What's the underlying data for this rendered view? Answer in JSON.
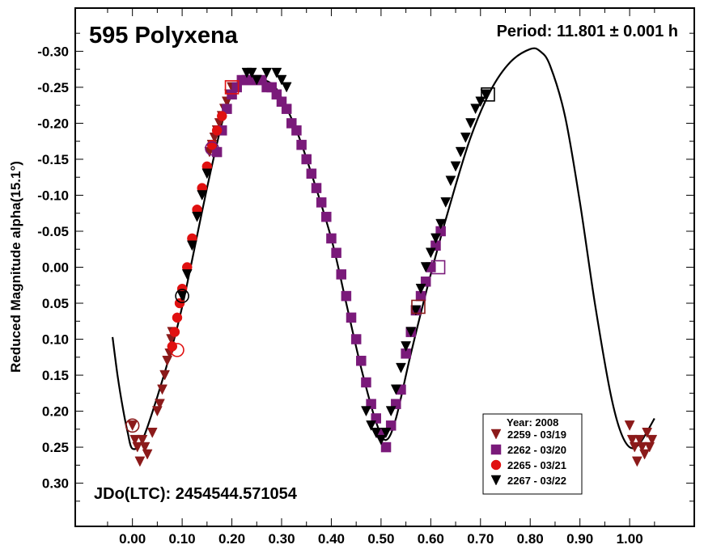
{
  "chart_data": {
    "type": "scatter",
    "title": "595 Polyxena",
    "period_label": "Period: 11.801 ± 0.001 h",
    "jdo_label": "JDo(LTC): 2454544.571054",
    "xlabel": "",
    "ylabel": "Reduced Magnitude alpha(15.1°)",
    "xlim": [
      -0.115,
      1.13
    ],
    "ylim": [
      0.36,
      -0.36
    ],
    "y_inverted": true,
    "grid": false,
    "x_ticks": [
      0.0,
      0.1,
      0.2,
      0.3,
      0.4,
      0.5,
      0.6,
      0.7,
      0.8,
      0.9,
      1.0
    ],
    "x_tick_labels": [
      "0.00",
      "0.10",
      "0.20",
      "0.30",
      "0.40",
      "0.50",
      "0.60",
      "0.70",
      "0.80",
      "0.90",
      "1.00"
    ],
    "y_ticks": [
      -0.3,
      -0.25,
      -0.2,
      -0.15,
      -0.1,
      -0.05,
      0.0,
      0.05,
      0.1,
      0.15,
      0.2,
      0.25,
      0.3
    ],
    "y_tick_labels": [
      "-0.30",
      "-0.25",
      "-0.20",
      "-0.15",
      "-0.10",
      "-0.05",
      "0.00",
      "0.05",
      "0.10",
      "0.15",
      "0.20",
      "0.25",
      "0.30"
    ],
    "legend": {
      "title": "Year: 2008",
      "placement": "bottom-right",
      "entries": [
        {
          "label": "2259 - 03/19",
          "marker": "triangle-down",
          "color": "#8b1a1a"
        },
        {
          "label": "2262 - 03/20",
          "marker": "square",
          "color": "#7a1a7a"
        },
        {
          "label": "2265 - 03/21",
          "marker": "circle",
          "color": "#e01010"
        },
        {
          "label": "2267 - 03/22",
          "marker": "triangle-down",
          "color": "#000000"
        }
      ]
    },
    "fit_curve": {
      "x": [
        -0.04,
        -0.03,
        -0.02,
        -0.01,
        0.0,
        0.02,
        0.05,
        0.08,
        0.1,
        0.12,
        0.15,
        0.18,
        0.2,
        0.22,
        0.25,
        0.28,
        0.3,
        0.33,
        0.36,
        0.4,
        0.43,
        0.46,
        0.49,
        0.51,
        0.53,
        0.56,
        0.6,
        0.64,
        0.68,
        0.72,
        0.76,
        0.8,
        0.82,
        0.84,
        0.87,
        0.9,
        0.93,
        0.96,
        0.98,
        1.0,
        1.02,
        1.05
      ],
      "y": [
        0.097,
        0.15,
        0.193,
        0.228,
        0.252,
        0.24,
        0.18,
        0.11,
        0.055,
        -0.01,
        -0.11,
        -0.2,
        -0.24,
        -0.258,
        -0.262,
        -0.255,
        -0.235,
        -0.19,
        -0.13,
        -0.04,
        0.05,
        0.14,
        0.215,
        0.24,
        0.21,
        0.12,
        0.01,
        -0.09,
        -0.18,
        -0.245,
        -0.285,
        -0.303,
        -0.3,
        -0.28,
        -0.21,
        -0.09,
        0.05,
        0.17,
        0.225,
        0.25,
        0.245,
        0.21
      ]
    },
    "series": [
      {
        "name": "2259 - 03/19",
        "x": [
          0.0,
          0.005,
          0.01,
          0.015,
          0.02,
          0.025,
          0.03,
          0.04,
          0.05,
          0.055,
          0.06,
          0.065,
          0.07,
          0.075,
          0.078,
          0.08,
          0.155,
          0.16,
          0.165,
          0.17,
          0.175,
          0.18,
          0.185,
          0.19,
          0.195,
          0.2,
          1.0,
          1.005,
          1.01,
          1.015,
          1.02,
          1.025,
          1.03,
          1.035,
          1.04,
          1.045
        ],
        "y": [
          0.22,
          0.24,
          0.25,
          0.27,
          0.24,
          0.25,
          0.26,
          0.23,
          0.2,
          0.19,
          0.17,
          0.15,
          0.13,
          0.12,
          0.1,
          0.09,
          -0.16,
          -0.17,
          -0.18,
          -0.19,
          -0.2,
          -0.21,
          -0.22,
          -0.23,
          -0.24,
          -0.25,
          0.22,
          0.24,
          0.25,
          0.27,
          0.24,
          0.25,
          0.26,
          0.23,
          0.25,
          0.24
        ]
      },
      {
        "name": "2262 - 03/20",
        "x": [
          0.17,
          0.18,
          0.19,
          0.2,
          0.21,
          0.22,
          0.23,
          0.24,
          0.25,
          0.26,
          0.27,
          0.28,
          0.29,
          0.3,
          0.31,
          0.32,
          0.33,
          0.34,
          0.35,
          0.36,
          0.37,
          0.38,
          0.39,
          0.4,
          0.41,
          0.42,
          0.43,
          0.44,
          0.45,
          0.46,
          0.47,
          0.48,
          0.49,
          0.5,
          0.51,
          0.52,
          0.53,
          0.54,
          0.55,
          0.56,
          0.57,
          0.58,
          0.59,
          0.6,
          0.61,
          0.62
        ],
        "y": [
          -0.16,
          -0.19,
          -0.22,
          -0.24,
          -0.25,
          -0.26,
          -0.26,
          -0.26,
          -0.26,
          -0.26,
          -0.25,
          -0.25,
          -0.24,
          -0.23,
          -0.22,
          -0.2,
          -0.19,
          -0.17,
          -0.15,
          -0.13,
          -0.11,
          -0.09,
          -0.07,
          -0.04,
          -0.02,
          0.01,
          0.04,
          0.07,
          0.1,
          0.13,
          0.16,
          0.19,
          0.21,
          0.23,
          0.25,
          0.22,
          0.19,
          0.17,
          0.12,
          0.09,
          0.06,
          0.04,
          0.02,
          0.0,
          -0.03,
          -0.05
        ]
      },
      {
        "name": "2265 - 03/21",
        "x": [
          0.08,
          0.085,
          0.09,
          0.095,
          0.1,
          0.11,
          0.12,
          0.13,
          0.14,
          0.15,
          0.16,
          0.17,
          0.18
        ],
        "y": [
          0.11,
          0.09,
          0.07,
          0.05,
          0.03,
          0.0,
          -0.04,
          -0.08,
          -0.11,
          -0.14,
          -0.17,
          -0.19,
          -0.21
        ]
      },
      {
        "name": "2267 - 03/22",
        "x": [
          0.1,
          0.11,
          0.12,
          0.13,
          0.14,
          0.15,
          0.23,
          0.24,
          0.25,
          0.27,
          0.29,
          0.3,
          0.31,
          0.47,
          0.48,
          0.49,
          0.5,
          0.51,
          0.52,
          0.53,
          0.54,
          0.55,
          0.56,
          0.57,
          0.58,
          0.59,
          0.6,
          0.61,
          0.62,
          0.63,
          0.64,
          0.65,
          0.66,
          0.67,
          0.68,
          0.69,
          0.7,
          0.71
        ],
        "y": [
          0.04,
          0.01,
          -0.03,
          -0.07,
          -0.1,
          -0.13,
          -0.27,
          -0.27,
          -0.26,
          -0.27,
          -0.27,
          -0.26,
          -0.25,
          0.2,
          0.22,
          0.23,
          0.24,
          0.23,
          0.2,
          0.17,
          0.14,
          0.11,
          0.09,
          0.06,
          0.03,
          0.0,
          -0.02,
          -0.04,
          -0.06,
          -0.09,
          -0.12,
          -0.14,
          -0.16,
          -0.18,
          -0.2,
          -0.22,
          -0.23,
          -0.24
        ]
      }
    ],
    "open_markers": [
      {
        "series": "2259 - 03/19",
        "shape": "circle",
        "x": 0.0,
        "y": 0.22,
        "color": "#8b1a1a"
      },
      {
        "series": "2265 - 03/21",
        "shape": "circle",
        "x": 0.09,
        "y": 0.115,
        "color": "#e01010"
      },
      {
        "series": "2267 - 03/22",
        "shape": "circle",
        "x": 0.1,
        "y": 0.04,
        "color": "#000000"
      },
      {
        "series": "2262 - 03/20",
        "shape": "circle",
        "x": 0.16,
        "y": -0.165,
        "color": "#7a1a7a"
      },
      {
        "series": "2259 - 03/19",
        "shape": "square",
        "x": 0.2,
        "y": -0.25,
        "color": "#e01010"
      },
      {
        "series": "2262 - 03/20",
        "shape": "square",
        "x": 0.575,
        "y": 0.055,
        "color": "#8b1a1a"
      },
      {
        "series": "2262 - 03/20",
        "shape": "square",
        "x": 0.615,
        "y": 0.0,
        "color": "#7a1a7a"
      },
      {
        "series": "2267 - 03/22",
        "shape": "square",
        "x": 0.715,
        "y": -0.24,
        "color": "#000000"
      }
    ]
  }
}
